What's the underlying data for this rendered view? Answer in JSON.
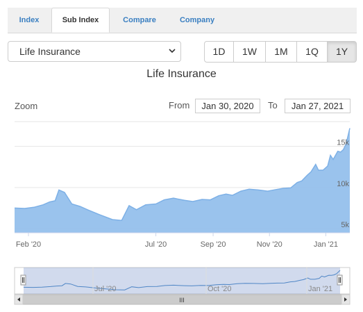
{
  "tabs": [
    {
      "label": "Index",
      "active": false
    },
    {
      "label": "Sub Index",
      "active": true
    },
    {
      "label": "Compare",
      "active": false
    },
    {
      "label": "Company",
      "active": false
    }
  ],
  "selector": {
    "value": "Life Insurance"
  },
  "ranges": [
    {
      "label": "1D",
      "active": false
    },
    {
      "label": "1W",
      "active": false
    },
    {
      "label": "1M",
      "active": false
    },
    {
      "label": "1Q",
      "active": false
    },
    {
      "label": "1Y",
      "active": true
    }
  ],
  "chart_title": "Life Insurance",
  "zoom_label": "Zoom",
  "from_label": "From",
  "from_value": "Jan 30, 2020",
  "to_label": "To",
  "to_value": "Jan 27, 2021",
  "navigator": {
    "tick_labels": [
      "Jul '20",
      "Oct '20",
      "Jan '21"
    ],
    "scroll_grip": "III"
  },
  "colors": {
    "area_fill": "#95c0ec",
    "area_line": "#7db0e6",
    "accent": "#3a7fc1"
  },
  "chart_data": {
    "type": "area",
    "title": "Life Insurance",
    "x_tick_labels": [
      "Feb '20",
      "Jul '20",
      "Sep '20",
      "Nov '20",
      "Jan '21"
    ],
    "y_tick_labels": [
      "5k",
      "10k",
      "15k"
    ],
    "ylim": [
      4500,
      18000
    ],
    "grid": true,
    "series": [
      {
        "points": [
          [
            "2020-01-30",
            7500
          ],
          [
            "2020-02-10",
            7450
          ],
          [
            "2020-02-20",
            7600
          ],
          [
            "2020-03-01",
            7900
          ],
          [
            "2020-03-08",
            8250
          ],
          [
            "2020-03-14",
            8400
          ],
          [
            "2020-03-18",
            9700
          ],
          [
            "2020-03-24",
            9400
          ],
          [
            "2020-04-01",
            8000
          ],
          [
            "2020-04-10",
            7700
          ],
          [
            "2020-04-20",
            7200
          ],
          [
            "2020-05-01",
            6700
          ],
          [
            "2020-05-15",
            6100
          ],
          [
            "2020-05-25",
            6000
          ],
          [
            "2020-06-02",
            7800
          ],
          [
            "2020-06-10",
            7300
          ],
          [
            "2020-06-20",
            7900
          ],
          [
            "2020-07-01",
            8000
          ],
          [
            "2020-07-10",
            8500
          ],
          [
            "2020-07-20",
            8700
          ],
          [
            "2020-08-01",
            8450
          ],
          [
            "2020-08-10",
            8300
          ],
          [
            "2020-08-20",
            8550
          ],
          [
            "2020-08-29",
            8500
          ],
          [
            "2020-09-07",
            9000
          ],
          [
            "2020-09-15",
            9200
          ],
          [
            "2020-09-22",
            9050
          ],
          [
            "2020-10-01",
            9550
          ],
          [
            "2020-10-10",
            9800
          ],
          [
            "2020-10-20",
            9700
          ],
          [
            "2020-10-30",
            9550
          ],
          [
            "2020-11-08",
            9750
          ],
          [
            "2020-11-16",
            9900
          ],
          [
            "2020-11-24",
            9950
          ],
          [
            "2020-12-01",
            10600
          ],
          [
            "2020-12-06",
            10800
          ],
          [
            "2020-12-12",
            11500
          ],
          [
            "2020-12-16",
            11900
          ],
          [
            "2020-12-21",
            12800
          ],
          [
            "2020-12-24",
            12100
          ],
          [
            "2020-12-29",
            12100
          ],
          [
            "2021-01-03",
            12600
          ],
          [
            "2021-01-06",
            13900
          ],
          [
            "2021-01-09",
            13400
          ],
          [
            "2021-01-11",
            13800
          ],
          [
            "2021-01-14",
            14400
          ],
          [
            "2021-01-17",
            14300
          ],
          [
            "2021-01-20",
            14600
          ],
          [
            "2021-01-23",
            15300
          ],
          [
            "2021-01-27",
            17200
          ]
        ]
      }
    ]
  }
}
